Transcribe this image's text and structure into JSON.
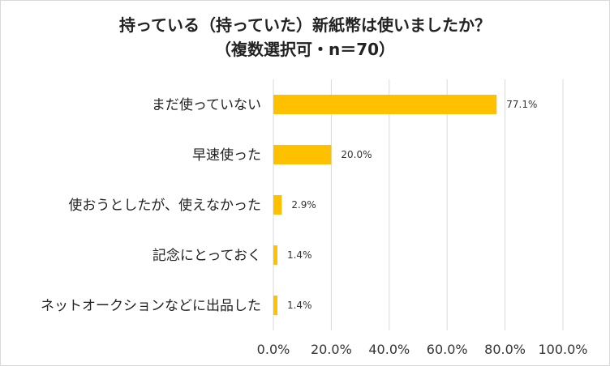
{
  "chart_data": {
    "type": "bar",
    "orientation": "horizontal",
    "title_lines": [
      "持っている（持っていた）新紙幣は使いましたか？",
      "（複数選択可・n＝70）"
    ],
    "categories": [
      "まだ使っていない",
      "早速使った",
      "使おうとしたが、使えなかった",
      "記念にとっておく",
      "ネットオークションなどに出品した"
    ],
    "values": [
      77.1,
      20.0,
      2.9,
      1.4,
      1.4
    ],
    "data_labels": [
      "77.1%",
      "20.0%",
      "2.9%",
      "1.4%",
      "1.4%"
    ],
    "xlim": [
      0,
      100
    ],
    "x_ticks": [
      0,
      20,
      40,
      60,
      80,
      100
    ],
    "x_tick_labels": [
      "0.0%",
      "20.0%",
      "40.0%",
      "60.0%",
      "80.0%",
      "100.0%"
    ],
    "grid": true,
    "bar_color": "#FFC000",
    "grid_color": "#d9d9d9"
  }
}
